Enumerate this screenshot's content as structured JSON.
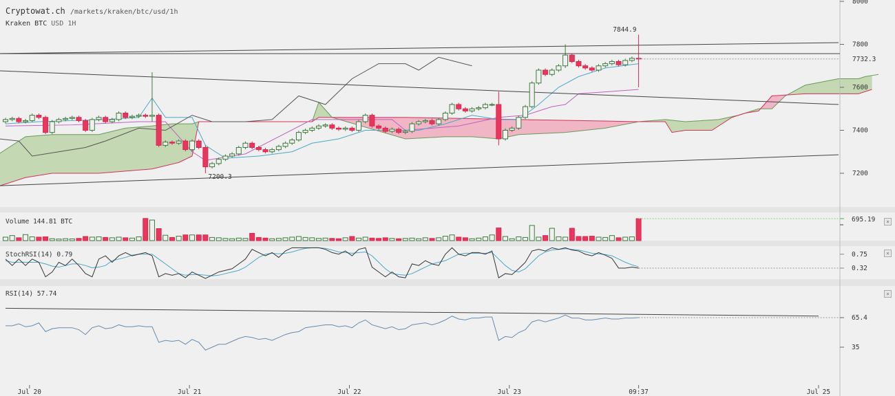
{
  "header": {
    "site": "Cryptowat.ch",
    "path": "/markets/kraken/btc/usd/1h",
    "exchange": "Kraken",
    "pair": "BTC",
    "quote": "USD",
    "interval": "1H"
  },
  "panes": {
    "volume_label": "Volume",
    "volume_value": "144.81 BTC",
    "stoch_label": "StochRSI(14)",
    "stoch_value": "0.79",
    "rsi_label": "RSI(14)",
    "rsi_value": "57.74",
    "close_icon": "×"
  },
  "chart_data": {
    "type": "candlestick",
    "price_axis": {
      "ticks": [
        8000,
        7800,
        7600,
        7400,
        7200
      ],
      "last_price": "7732.3",
      "high_label": "7844.9",
      "low_label": "7200.3"
    },
    "time_axis": [
      {
        "label": "Jul 20",
        "i": 3.6
      },
      {
        "label": "Jul 21",
        "i": 27.6
      },
      {
        "label": "Jul 22",
        "i": 51.6
      },
      {
        "label": "Jul 23",
        "i": 75.6
      },
      {
        "label": "09:37",
        "i": 95
      },
      {
        "label": "Jul 25",
        "i": 122
      }
    ],
    "closes": [
      7450,
      7455,
      7440,
      7445,
      7470,
      7460,
      7390,
      7440,
      7450,
      7455,
      7460,
      7445,
      7400,
      7450,
      7460,
      7440,
      7450,
      7480,
      7460,
      7465,
      7470,
      7465,
      7470,
      7330,
      7345,
      7340,
      7350,
      7310,
      7350,
      7320,
      7230,
      7245,
      7265,
      7280,
      7290,
      7320,
      7340,
      7320,
      7310,
      7300,
      7310,
      7325,
      7340,
      7355,
      7390,
      7400,
      7410,
      7420,
      7425,
      7410,
      7405,
      7410,
      7400,
      7440,
      7470,
      7420,
      7410,
      7395,
      7405,
      7390,
      7395,
      7430,
      7440,
      7445,
      7430,
      7450,
      7480,
      7520,
      7500,
      7490,
      7500,
      7505,
      7520,
      7520,
      7360,
      7400,
      7410,
      7460,
      7510,
      7620,
      7680,
      7660,
      7680,
      7700,
      7750,
      7720,
      7700,
      7690,
      7680,
      7700,
      7710,
      7720,
      7705,
      7725,
      7735,
      7732
    ],
    "first_open": 7440,
    "extremes": {
      "22": [
        7670,
        7440
      ],
      "30": [
        7330,
        7200
      ],
      "74": [
        7580,
        7330
      ],
      "84": [
        7800,
        7690
      ],
      "95": [
        7845,
        7600
      ]
    },
    "volume": {
      "axis_label": "695.19",
      "values": [
        110,
        160,
        90,
        190,
        120,
        110,
        120,
        60,
        50,
        60,
        55,
        70,
        130,
        110,
        120,
        100,
        90,
        110,
        90,
        80,
        120,
        700,
        650,
        380,
        170,
        100,
        140,
        180,
        180,
        180,
        180,
        100,
        90,
        70,
        60,
        80,
        70,
        230,
        100,
        80,
        60,
        70,
        90,
        110,
        130,
        100,
        90,
        70,
        80,
        70,
        60,
        90,
        130,
        80,
        110,
        80,
        70,
        90,
        70,
        60,
        70,
        80,
        60,
        90,
        70,
        90,
        140,
        180,
        110,
        90,
        60,
        80,
        120,
        180,
        400,
        130,
        60,
        120,
        100,
        480,
        110,
        160,
        390,
        120,
        110,
        390,
        130,
        130,
        140,
        110,
        100,
        160,
        90,
        110,
        120,
        695
      ]
    },
    "stochrsi": {
      "ticks": [
        "0.75",
        "0.32"
      ],
      "k": [
        0.6,
        0.4,
        0.6,
        0.4,
        0.6,
        0.5,
        0.05,
        0.2,
        0.5,
        0.4,
        0.6,
        0.4,
        0.15,
        0.05,
        0.6,
        0.7,
        0.5,
        0.7,
        0.8,
        0.7,
        0.75,
        0.8,
        0.7,
        0.05,
        0.15,
        0.1,
        0.15,
        0.02,
        0.2,
        0.1,
        0,
        0.1,
        0.2,
        0.25,
        0.3,
        0.45,
        0.6,
        0.9,
        0.8,
        0.7,
        0.8,
        0.65,
        0.85,
        0.95,
        0.95,
        0.95,
        0.95,
        0.95,
        0.9,
        0.8,
        0.75,
        0.85,
        0.7,
        0.9,
        0.95,
        0.35,
        0.2,
        0.05,
        0.2,
        0.05,
        0.02,
        0.45,
        0.4,
        0.55,
        0.45,
        0.4,
        0.75,
        0.95,
        0.75,
        0.7,
        0.8,
        0.8,
        0.75,
        0.85,
        0.02,
        0.15,
        0.12,
        0.3,
        0.5,
        0.85,
        0.9,
        0.85,
        0.95,
        0.9,
        0.95,
        0.88,
        0.85,
        0.75,
        0.7,
        0.8,
        0.72,
        0.62,
        0.32,
        0.32,
        0.35,
        0.32
      ],
      "d": [
        0.55,
        0.5,
        0.5,
        0.5,
        0.5,
        0.5,
        0.45,
        0.38,
        0.35,
        0.4,
        0.45,
        0.45,
        0.4,
        0.33,
        0.35,
        0.4,
        0.55,
        0.6,
        0.65,
        0.72,
        0.75,
        0.75,
        0.75,
        0.6,
        0.45,
        0.3,
        0.15,
        0.1,
        0.12,
        0.12,
        0.1,
        0.08,
        0.1,
        0.15,
        0.2,
        0.25,
        0.35,
        0.5,
        0.65,
        0.75,
        0.78,
        0.76,
        0.78,
        0.82,
        0.88,
        0.93,
        0.95,
        0.95,
        0.93,
        0.88,
        0.82,
        0.8,
        0.78,
        0.8,
        0.82,
        0.7,
        0.5,
        0.3,
        0.15,
        0.12,
        0.1,
        0.15,
        0.25,
        0.35,
        0.45,
        0.5,
        0.55,
        0.65,
        0.75,
        0.78,
        0.78,
        0.78,
        0.78,
        0.8,
        0.6,
        0.4,
        0.25,
        0.2,
        0.3,
        0.5,
        0.7,
        0.82,
        0.88,
        0.9,
        0.92,
        0.9,
        0.88,
        0.83,
        0.78,
        0.76,
        0.74,
        0.7,
        0.6,
        0.5,
        0.42,
        0.36
      ]
    },
    "rsi": {
      "ticks": [
        "65.4",
        "35"
      ],
      "trend": [
        [
          0,
          75
        ],
        [
          122,
          67
        ]
      ],
      "values": [
        57,
        57,
        59,
        56,
        57,
        60,
        51,
        54,
        55,
        55,
        55,
        53,
        48,
        55,
        57,
        54,
        55,
        58,
        56,
        56,
        57,
        56,
        56,
        40,
        42,
        41,
        42,
        38,
        43,
        40,
        32,
        35,
        38,
        38,
        41,
        44,
        46,
        45,
        43,
        44,
        42,
        45,
        48,
        50,
        51,
        55,
        56,
        57,
        58,
        58,
        56,
        57,
        55,
        60,
        63,
        58,
        56,
        54,
        56,
        53,
        54,
        58,
        59,
        60,
        58,
        60,
        63,
        67,
        64,
        63,
        65,
        65,
        66,
        66,
        42,
        46,
        45,
        50,
        53,
        61,
        63,
        61,
        63,
        65,
        68,
        65,
        65,
        63,
        63,
        64,
        65,
        64,
        64,
        65,
        65,
        65.4
      ]
    },
    "trendlines": [
      [
        [
          -1,
          7677
        ],
        [
          125,
          7520
        ]
      ],
      [
        [
          -1,
          7142
        ],
        [
          125,
          7286
        ]
      ],
      [
        [
          -1,
          7757
        ],
        [
          125,
          7808
        ]
      ]
    ],
    "horizontal_line": 7757,
    "senkou_a": [
      [
        -1,
        7290
      ],
      [
        3,
        7370
      ],
      [
        7,
        7380
      ],
      [
        14,
        7380
      ],
      [
        18,
        7410
      ],
      [
        22,
        7420
      ],
      [
        25,
        7430
      ],
      [
        28,
        7430
      ],
      [
        29,
        7440
      ],
      [
        46,
        7440
      ],
      [
        47,
        7530
      ],
      [
        49,
        7460
      ],
      [
        60,
        7360
      ],
      [
        66,
        7370
      ],
      [
        70,
        7370
      ],
      [
        74,
        7360
      ],
      [
        77,
        7380
      ],
      [
        84,
        7390
      ],
      [
        90,
        7410
      ],
      [
        95,
        7440
      ],
      [
        99,
        7450
      ],
      [
        102,
        7440
      ],
      [
        107,
        7450
      ],
      [
        110,
        7470
      ],
      [
        113,
        7500
      ],
      [
        115,
        7500
      ],
      [
        117,
        7560
      ],
      [
        120,
        7610
      ],
      [
        125,
        7640
      ],
      [
        128,
        7640
      ],
      [
        129,
        7650
      ],
      [
        131,
        7660
      ]
    ],
    "senkou_b": [
      [
        -1,
        7140
      ],
      [
        3,
        7180
      ],
      [
        7,
        7200
      ],
      [
        14,
        7200
      ],
      [
        22,
        7220
      ],
      [
        26,
        7250
      ],
      [
        28,
        7280
      ],
      [
        29,
        7440
      ],
      [
        46,
        7440
      ],
      [
        47,
        7460
      ],
      [
        60,
        7460
      ],
      [
        95,
        7440
      ],
      [
        99,
        7440
      ],
      [
        100,
        7390
      ],
      [
        102,
        7400
      ],
      [
        106,
        7400
      ],
      [
        107,
        7420
      ],
      [
        109,
        7460
      ],
      [
        111,
        7480
      ],
      [
        113,
        7490
      ],
      [
        115,
        7560
      ],
      [
        120,
        7570
      ],
      [
        126,
        7570
      ],
      [
        128,
        7570
      ],
      [
        130,
        7590
      ]
    ],
    "tenkan": [
      [
        0,
        7430
      ],
      [
        5,
        7440
      ],
      [
        10,
        7445
      ],
      [
        15,
        7450
      ],
      [
        20,
        7460
      ],
      [
        22,
        7550
      ],
      [
        24,
        7460
      ],
      [
        28,
        7460
      ],
      [
        30,
        7330
      ],
      [
        33,
        7270
      ],
      [
        38,
        7280
      ],
      [
        43,
        7300
      ],
      [
        46,
        7340
      ],
      [
        50,
        7360
      ],
      [
        54,
        7400
      ],
      [
        58,
        7400
      ],
      [
        62,
        7400
      ],
      [
        66,
        7430
      ],
      [
        70,
        7470
      ],
      [
        74,
        7450
      ],
      [
        77,
        7450
      ],
      [
        80,
        7520
      ],
      [
        83,
        7600
      ],
      [
        86,
        7650
      ],
      [
        90,
        7690
      ],
      [
        95,
        7710
      ]
    ],
    "kijun": [
      [
        0,
        7420
      ],
      [
        10,
        7425
      ],
      [
        20,
        7440
      ],
      [
        24,
        7440
      ],
      [
        28,
        7300
      ],
      [
        30,
        7260
      ],
      [
        36,
        7290
      ],
      [
        46,
        7450
      ],
      [
        58,
        7450
      ],
      [
        60,
        7400
      ],
      [
        68,
        7420
      ],
      [
        74,
        7460
      ],
      [
        78,
        7470
      ],
      [
        82,
        7510
      ],
      [
        84,
        7520
      ],
      [
        86,
        7570
      ],
      [
        95,
        7590
      ]
    ],
    "chikou": [
      [
        -1,
        7360
      ],
      [
        2,
        7350
      ],
      [
        4,
        7280
      ],
      [
        8,
        7300
      ],
      [
        12,
        7320
      ],
      [
        15,
        7350
      ],
      [
        20,
        7410
      ],
      [
        24,
        7400
      ],
      [
        28,
        7470
      ],
      [
        31,
        7440
      ],
      [
        36,
        7440
      ],
      [
        40,
        7450
      ],
      [
        44,
        7560
      ],
      [
        48,
        7520
      ],
      [
        52,
        7640
      ],
      [
        56,
        7710
      ],
      [
        60,
        7710
      ],
      [
        62,
        7680
      ],
      [
        65,
        7740
      ],
      [
        70,
        7700
      ]
    ]
  }
}
